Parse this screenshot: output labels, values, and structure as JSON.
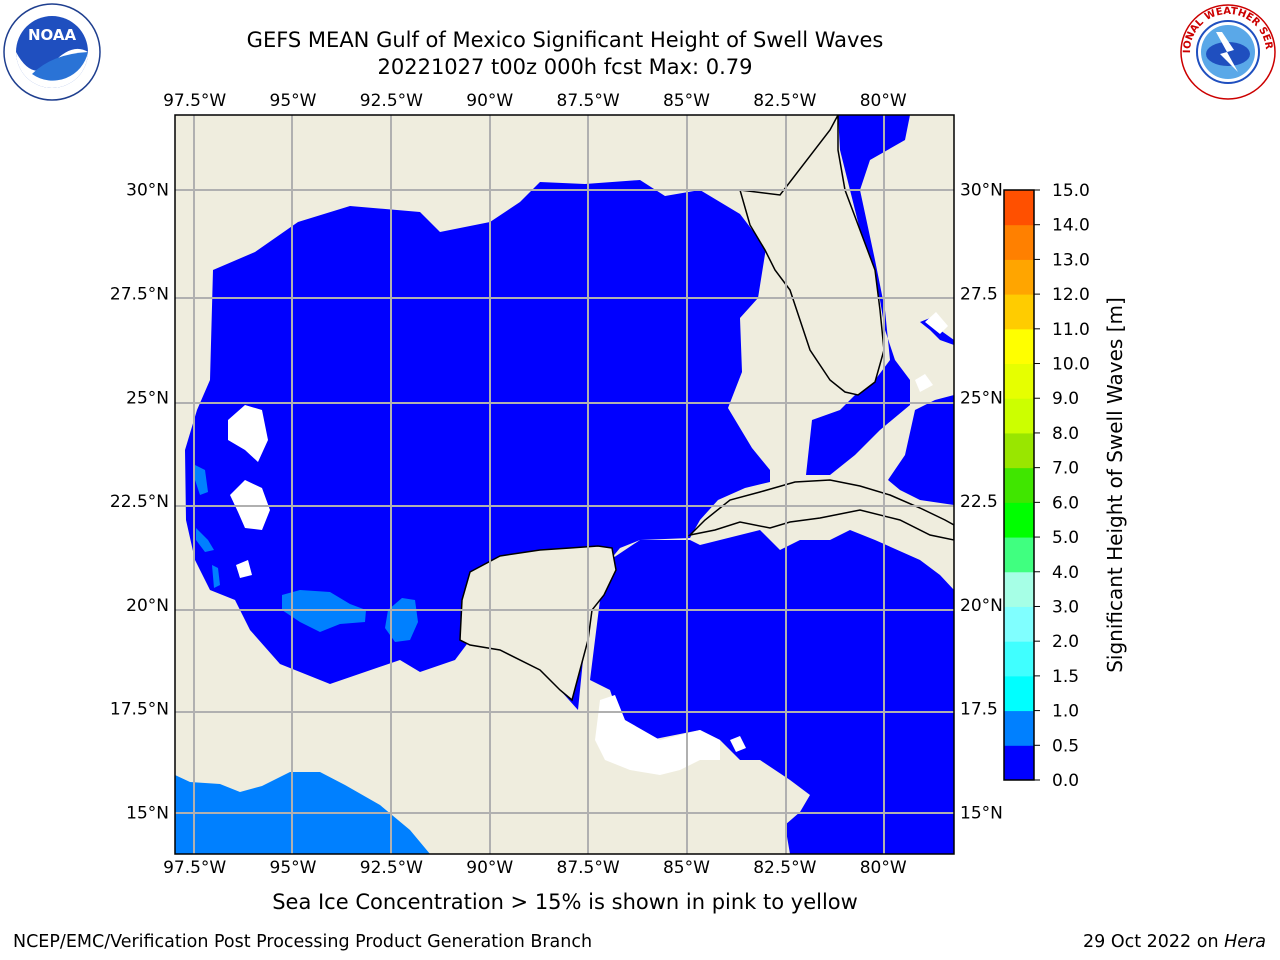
{
  "title": {
    "line1": "GEFS MEAN Gulf of Mexico Significant Height of Swell Waves",
    "line2": "20221027 t00z 000h fcst   Max: 0.79"
  },
  "map": {
    "projection": "lat-lon",
    "lon_range": [
      -98,
      -78.2
    ],
    "lat_range": [
      14,
      31.8
    ],
    "lon_ticks": [
      -97.5,
      -95,
      -92.5,
      -90,
      -87.5,
      -85,
      -82.5,
      -80
    ],
    "lon_tick_labels": [
      "97.5°W",
      "95°W",
      "92.5°W",
      "90°W",
      "87.5°W",
      "85°W",
      "82.5°W",
      "80°W"
    ],
    "lat_ticks": [
      30,
      27.5,
      25,
      22.5,
      20,
      17.5,
      15
    ],
    "lat_tick_labels_left": [
      "30°N",
      "27.5°N",
      "25°N",
      "22.5°N",
      "20°N",
      "17.5°N",
      "15°N"
    ],
    "lat_tick_labels_right": [
      "30°N",
      "27.5",
      "25°N",
      "22.5",
      "20°N",
      "17.5",
      "15°N"
    ],
    "gridlines": true,
    "land_color": "#efedde",
    "sea_color": "#0000ff",
    "swell_field_note": "Gulf and Caribbean mostly 0.0–0.5 m; patches 0.5–1.0 m in Bay of Campeche and Pacific coast"
  },
  "colorbar": {
    "label": "Significant Height of Swell Waves [m]",
    "ticks": [
      "0.0",
      "0.5",
      "1.0",
      "1.5",
      "2.0",
      "3.0",
      "4.0",
      "5.0",
      "6.0",
      "7.0",
      "8.0",
      "9.0",
      "10.0",
      "11.0",
      "12.0",
      "13.0",
      "14.0",
      "15.0"
    ],
    "colors": [
      "#0000ff",
      "#0080ff",
      "#00ffff",
      "#40ffff",
      "#80ffff",
      "#a6ffe6",
      "#40ff80",
      "#00ff00",
      "#40e600",
      "#99e600",
      "#ccff00",
      "#e6ff00",
      "#ffff00",
      "#ffcc00",
      "#ffa500",
      "#ff8000",
      "#ff5000",
      "#ff2000",
      "#ff0000"
    ]
  },
  "caption": "Sea Ice Concentration > 15% is shown in pink to yellow",
  "footer": {
    "left": "NCEP/EMC/Verification Post Processing Product Generation Branch",
    "right_date": "29 Oct 2022 on",
    "right_system": "Hera"
  },
  "logos": {
    "left": "NOAA",
    "right": "NATIONAL WEATHER SERVICE"
  }
}
